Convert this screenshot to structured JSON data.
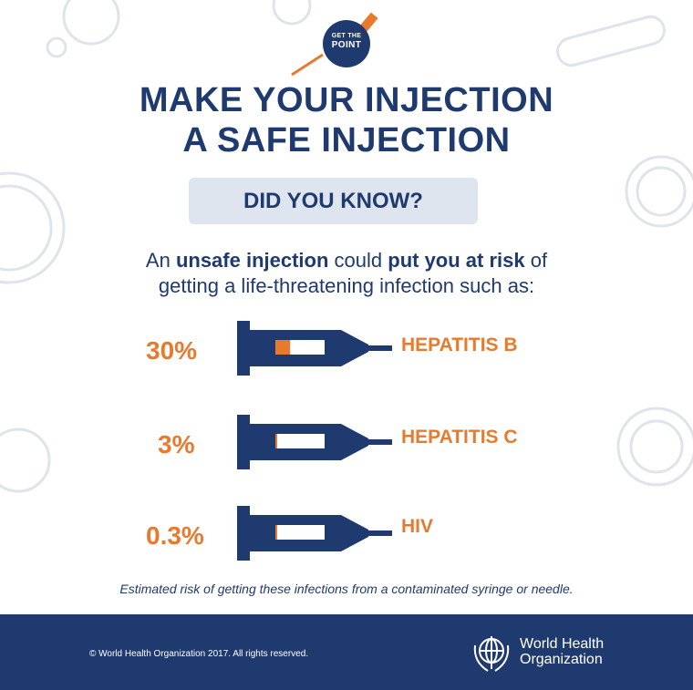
{
  "badge": {
    "line1": "GET THE",
    "line2": "POINT"
  },
  "title": {
    "line1": "MAKE YOUR INJECTION",
    "line2": "A SAFE INJECTION"
  },
  "callout": "DID YOU KNOW?",
  "intro": {
    "part1": "An ",
    "bold1": "unsafe injection",
    "part2": " could ",
    "bold2": "put you at risk",
    "part3": " of",
    "line2": "getting a life-threatening infection such as:"
  },
  "chart_data": {
    "type": "bar",
    "categories": [
      "HEPATITIS B",
      "HEPATITIS C",
      "HIV"
    ],
    "values": [
      30,
      3,
      0.3
    ],
    "value_labels": [
      "30%",
      "3%",
      "0.3%"
    ],
    "unit": "%",
    "ylim": [
      0,
      100
    ]
  },
  "colors": {
    "navy": "#1f3a6e",
    "orange": "#e87a2e"
  },
  "footnote": "Estimated risk of getting these infections from a contaminated syringe or needle.",
  "footer": {
    "copyright": "© World Health Organization 2017. All rights reserved.",
    "org_line1": "World Health",
    "org_line2": "Organization",
    "logo_icon": "who-emblem-icon"
  }
}
